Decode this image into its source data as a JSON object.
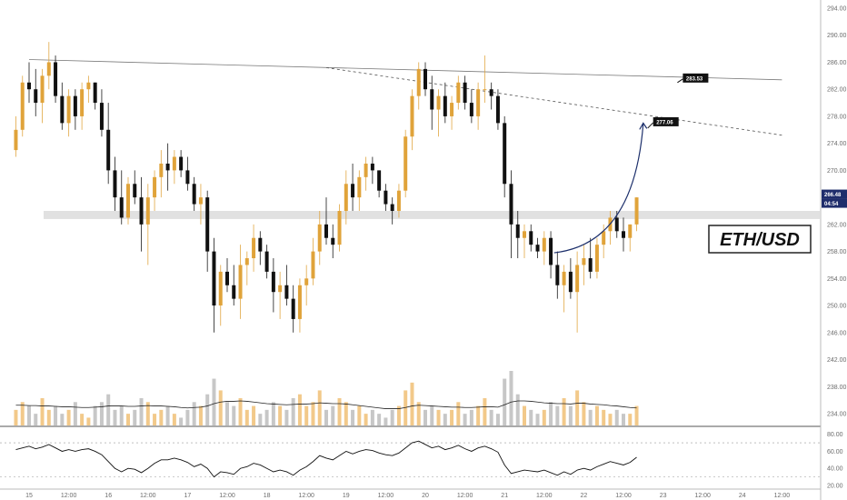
{
  "chart_data": {
    "type": "candlestick",
    "symbol_label": "ETH/USD",
    "price_axis": {
      "min": 232,
      "max": 296,
      "ticks": [
        294.0,
        290.0,
        286.0,
        282.0,
        278.0,
        274.0,
        270.0,
        266.0,
        262.0,
        258.0,
        254.0,
        250.0,
        246.0,
        242.0,
        238.0,
        234.0
      ]
    },
    "time_axis_labels": [
      "15",
      "12:00",
      "16",
      "12:00",
      "17",
      "12:00",
      "18",
      "12:00",
      "19",
      "12:00",
      "20",
      "12:00",
      "21",
      "12:00",
      "22",
      "12:00",
      "23",
      "12:00",
      "24",
      "12:00"
    ],
    "last_price": "266.48",
    "countdown": "04:54",
    "price_labels": [
      "283.53",
      "277.06"
    ],
    "annotations": {
      "resistance_line": [
        [
          "15 00:00",
          286.4
        ],
        [
          "24 12:00",
          283.4
        ]
      ],
      "descending_trend_line": [
        [
          "18 18:00",
          285.2
        ],
        [
          "24 12:00",
          275.2
        ]
      ],
      "support_zone": [
        262.8,
        264.0
      ],
      "projection_arrow": {
        "from": [
          "21 15:00",
          257.8
        ],
        "to": [
          "22 18:00",
          277.0
        ]
      },
      "label_283": {
        "x": "23 06:00",
        "y": 283.53
      },
      "label_277": {
        "x": "22 21:00",
        "y": 277.06
      }
    },
    "candles": {
      "interval_hours": 2,
      "start": "14 20:00",
      "ohlc": [
        [
          273,
          278,
          272,
          276
        ],
        [
          276,
          284,
          275,
          283
        ],
        [
          283,
          286,
          280,
          282
        ],
        [
          282,
          285,
          278,
          280
        ],
        [
          280,
          285,
          277,
          284
        ],
        [
          284,
          289,
          282,
          286
        ],
        [
          286,
          287,
          280,
          281
        ],
        [
          281,
          283,
          276,
          277
        ],
        [
          277,
          282,
          275,
          281
        ],
        [
          281,
          282,
          276,
          278
        ],
        [
          278,
          283,
          276,
          282
        ],
        [
          282,
          284,
          280,
          283
        ],
        [
          283,
          283,
          279,
          280
        ],
        [
          280,
          282,
          275,
          276
        ],
        [
          276,
          280,
          268,
          270
        ],
        [
          270,
          272,
          264,
          266
        ],
        [
          266,
          270,
          262,
          263
        ],
        [
          263,
          269,
          262,
          268
        ],
        [
          268,
          270,
          265,
          266
        ],
        [
          266,
          269,
          258,
          262
        ],
        [
          262,
          268,
          256,
          266
        ],
        [
          266,
          270,
          264,
          269
        ],
        [
          269,
          273,
          266,
          271
        ],
        [
          271,
          274,
          267,
          270
        ],
        [
          270,
          273,
          268,
          272
        ],
        [
          272,
          273,
          269,
          270
        ],
        [
          270,
          272,
          267,
          268
        ],
        [
          268,
          269,
          264,
          265
        ],
        [
          265,
          268,
          262,
          266
        ],
        [
          266,
          267,
          255,
          258
        ],
        [
          258,
          260,
          246,
          250
        ],
        [
          250,
          256,
          247,
          255
        ],
        [
          255,
          257,
          252,
          253
        ],
        [
          253,
          256,
          250,
          251
        ],
        [
          251,
          259,
          248,
          256
        ],
        [
          256,
          258,
          253,
          257
        ],
        [
          257,
          262,
          255,
          260
        ],
        [
          260,
          261,
          256,
          258
        ],
        [
          258,
          259,
          254,
          255
        ],
        [
          255,
          257,
          249,
          252
        ],
        [
          252,
          255,
          248,
          253
        ],
        [
          253,
          256,
          250,
          251
        ],
        [
          251,
          253,
          246,
          248
        ],
        [
          248,
          254,
          246,
          253
        ],
        [
          253,
          256,
          250,
          254
        ],
        [
          254,
          260,
          253,
          258
        ],
        [
          258,
          264,
          256,
          262
        ],
        [
          262,
          266,
          259,
          260
        ],
        [
          260,
          262,
          257,
          259
        ],
        [
          259,
          265,
          258,
          264
        ],
        [
          264,
          270,
          262,
          268
        ],
        [
          268,
          271,
          264,
          266
        ],
        [
          266,
          270,
          264,
          269
        ],
        [
          269,
          272,
          267,
          271
        ],
        [
          271,
          272,
          268,
          270
        ],
        [
          270,
          270,
          266,
          267
        ],
        [
          267,
          268,
          264,
          265
        ],
        [
          265,
          266,
          262,
          264
        ],
        [
          264,
          268,
          263,
          267
        ],
        [
          267,
          276,
          266,
          275
        ],
        [
          275,
          282,
          273,
          281
        ],
        [
          281,
          286,
          279,
          285
        ],
        [
          285,
          286,
          281,
          282
        ],
        [
          282,
          284,
          276,
          279
        ],
        [
          279,
          282,
          275,
          281
        ],
        [
          281,
          283,
          277,
          278
        ],
        [
          278,
          281,
          276,
          280
        ],
        [
          280,
          284,
          279,
          283
        ],
        [
          283,
          284,
          279,
          280
        ],
        [
          280,
          282,
          277,
          278
        ],
        [
          278,
          283,
          276,
          282
        ],
        [
          282,
          287,
          280,
          282
        ],
        [
          282,
          283,
          279,
          281
        ],
        [
          281,
          282,
          276,
          277
        ],
        [
          277,
          278,
          266,
          268
        ],
        [
          268,
          270,
          257,
          262
        ],
        [
          262,
          264,
          257,
          260
        ],
        [
          260,
          262,
          257,
          261
        ],
        [
          261,
          262,
          258,
          259
        ],
        [
          259,
          260,
          257,
          258
        ],
        [
          258,
          261,
          256,
          260
        ],
        [
          260,
          261,
          254,
          256
        ],
        [
          256,
          258,
          251,
          253
        ],
        [
          253,
          256,
          249,
          255
        ],
        [
          255,
          257,
          251,
          252
        ],
        [
          252,
          258,
          246,
          256
        ],
        [
          256,
          259,
          253,
          257
        ],
        [
          257,
          260,
          254,
          255
        ],
        [
          255,
          260,
          254,
          259
        ],
        [
          259,
          262,
          257,
          261
        ],
        [
          261,
          264,
          259,
          263
        ],
        [
          263,
          264,
          260,
          261
        ],
        [
          261,
          263,
          258,
          260
        ],
        [
          260,
          262,
          258,
          262
        ],
        [
          262,
          266,
          261,
          266
        ]
      ],
      "volume": [
        4,
        6,
        5,
        3,
        7,
        4,
        5,
        3,
        4,
        6,
        3,
        2,
        5,
        6,
        8,
        4,
        5,
        3,
        4,
        7,
        6,
        3,
        4,
        5,
        3,
        2,
        4,
        6,
        5,
        8,
        12,
        9,
        6,
        5,
        7,
        4,
        5,
        3,
        4,
        6,
        5,
        4,
        7,
        8,
        5,
        6,
        9,
        4,
        5,
        7,
        6,
        4,
        5,
        3,
        4,
        3,
        2,
        4,
        5,
        9,
        11,
        6,
        4,
        5,
        4,
        3,
        4,
        6,
        3,
        4,
        5,
        7,
        4,
        3,
        12,
        14,
        8,
        5,
        4,
        3,
        4,
        6,
        5,
        7,
        5,
        9,
        6,
        4,
        5,
        4,
        3,
        4,
        3,
        3,
        5
      ]
    },
    "volume_ma": [
      5.2,
      5.2,
      5.1,
      5.1,
      5.0,
      5.0,
      4.9,
      4.8,
      4.8,
      4.7,
      4.6,
      4.6,
      4.7,
      4.8,
      5.0,
      5.0,
      5.0,
      4.9,
      4.9,
      5.0,
      5.1,
      5.0,
      5.0,
      4.9,
      4.8,
      4.6,
      4.5,
      4.6,
      4.7,
      5.0,
      5.6,
      6.0,
      6.2,
      6.2,
      6.3,
      6.2,
      6.0,
      5.8,
      5.6,
      5.5,
      5.4,
      5.3,
      5.4,
      5.5,
      5.5,
      5.6,
      5.8,
      5.7,
      5.6,
      5.6,
      5.5,
      5.3,
      5.1,
      4.9,
      4.7,
      4.5,
      4.3,
      4.3,
      4.3,
      4.6,
      5.0,
      5.2,
      5.1,
      5.0,
      4.9,
      4.8,
      4.7,
      4.7,
      4.6,
      4.6,
      4.7,
      4.8,
      4.8,
      4.7,
      5.3,
      6.0,
      6.3,
      6.3,
      6.2,
      6.0,
      5.8,
      5.7,
      5.6,
      5.6,
      5.5,
      5.7,
      5.7,
      5.5,
      5.4,
      5.3,
      5.1,
      5.0,
      4.8,
      4.6,
      4.5
    ],
    "oscillator": {
      "axis": {
        "min": 20,
        "max": 85,
        "ticks": [
          80.0,
          60.0,
          40.0,
          20.0
        ]
      },
      "levels": [
        70,
        30
      ],
      "values": [
        62,
        64,
        66,
        63,
        65,
        68,
        64,
        60,
        62,
        60,
        62,
        63,
        60,
        56,
        48,
        40,
        36,
        40,
        39,
        35,
        40,
        46,
        50,
        50,
        52,
        50,
        47,
        42,
        45,
        40,
        30,
        36,
        35,
        33,
        40,
        42,
        46,
        44,
        40,
        36,
        38,
        36,
        32,
        38,
        42,
        48,
        55,
        52,
        50,
        55,
        60,
        57,
        60,
        62,
        61,
        58,
        56,
        55,
        58,
        64,
        70,
        72,
        68,
        64,
        66,
        62,
        64,
        67,
        63,
        60,
        64,
        66,
        63,
        59,
        44,
        34,
        36,
        38,
        37,
        36,
        38,
        35,
        32,
        36,
        33,
        38,
        40,
        38,
        42,
        45,
        48,
        46,
        44,
        47,
        53
      ]
    }
  }
}
